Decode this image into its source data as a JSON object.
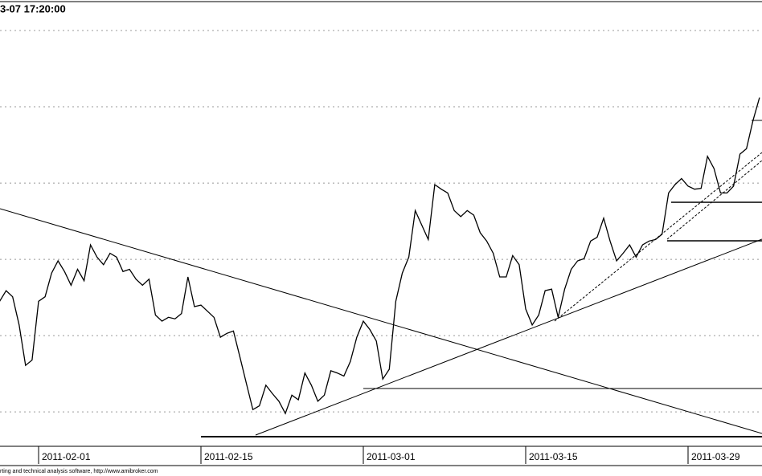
{
  "chart_data": {
    "type": "line",
    "title": "3-07 17:20:00",
    "footer": "rting and technical analysis software, http://www.amibroker.com",
    "categories": [
      null,
      null,
      null,
      null,
      null,
      null,
      "2011-02-01",
      null,
      null,
      null,
      null,
      null,
      null,
      null,
      null,
      null,
      null,
      null,
      null,
      null,
      null,
      null,
      null,
      null,
      null,
      null,
      null,
      null,
      null,
      null,
      null,
      "2011-02-15",
      null,
      null,
      null,
      null,
      null,
      null,
      null,
      null,
      null,
      null,
      null,
      null,
      null,
      null,
      null,
      null,
      null,
      null,
      null,
      null,
      null,
      null,
      null,
      null,
      "2011-03-01",
      null,
      null,
      null,
      null,
      null,
      null,
      null,
      null,
      null,
      null,
      null,
      null,
      null,
      null,
      null,
      null,
      null,
      null,
      null,
      null,
      null,
      null,
      null,
      null,
      "2011-03-15",
      null,
      null,
      null,
      null,
      null,
      null,
      null,
      null,
      null,
      null,
      null,
      null,
      null,
      null,
      null,
      null,
      null,
      null,
      null,
      null,
      null,
      null,
      null,
      null,
      "2011-03-29",
      null,
      null,
      null,
      null,
      null,
      null,
      null,
      null,
      null,
      null,
      null
    ],
    "values": [
      24.5,
      25.9,
      25.1,
      21.4,
      16.1,
      16.8,
      24.5,
      25.1,
      28.2,
      29.8,
      28.4,
      26.6,
      28.7,
      27.2,
      31.9,
      30.3,
      29.3,
      30.8,
      30.3,
      28.4,
      28.7,
      27.4,
      26.6,
      27.4,
      22.7,
      21.9,
      22.4,
      22.2,
      22.9,
      27.7,
      23.8,
      24,
      23.2,
      22.4,
      19.8,
      20.3,
      20.6,
      17.2,
      13.7,
      10.3,
      10.8,
      13.5,
      12.4,
      11.4,
      9.8,
      12.2,
      11.6,
      15.1,
      13.5,
      11.4,
      12.2,
      15.4,
      15.1,
      14.7,
      16.6,
      19.8,
      21.9,
      20.8,
      19.3,
      14.3,
      15.6,
      24.5,
      28.2,
      30.3,
      36.4,
      34.5,
      32.6,
      39.8,
      39.2,
      38.7,
      36.4,
      35.6,
      36.4,
      35.8,
      33.5,
      32.4,
      30.8,
      27.7,
      27.7,
      30.5,
      29.3,
      23.5,
      21.4,
      22.7,
      25.9,
      26.1,
      22.4,
      26.1,
      28.7,
      29.8,
      30.1,
      32.4,
      32.9,
      35.4,
      32.4,
      29.8,
      30.8,
      31.9,
      30.3,
      31.9,
      32.4,
      32.6,
      33.3,
      38.7,
      39.8,
      40.6,
      39.6,
      39.2,
      39.3,
      43.5,
      41.9,
      38.7,
      38.7,
      39.6,
      43.8,
      44.5,
      48.2,
      51.2
    ],
    "color": "#000000",
    "ylim": [
      5.6,
      64
    ],
    "ygrid": [
      10,
      20,
      30,
      40,
      50,
      60
    ],
    "grid": true
  }
}
